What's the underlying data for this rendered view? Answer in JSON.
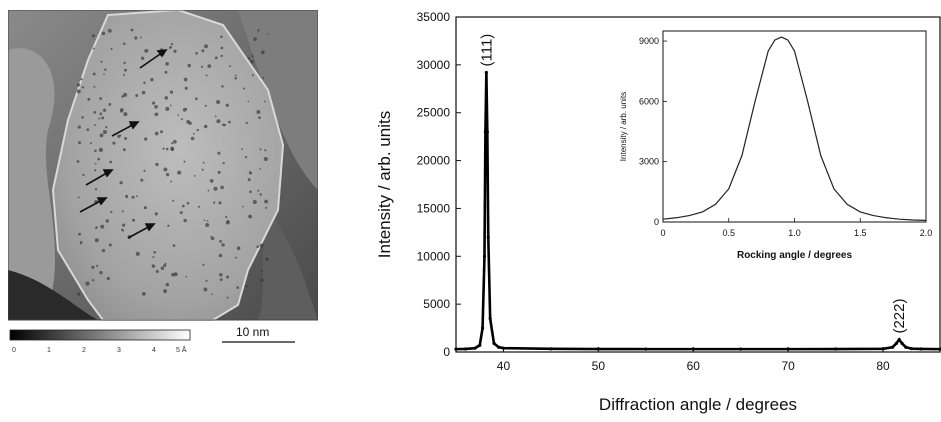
{
  "stm_image": {
    "colorbar_ticks": [
      "0",
      "1",
      "2",
      "3",
      "4",
      "5 Å"
    ],
    "scalebar_label": "10 nm"
  },
  "chart_data": [
    {
      "type": "line",
      "xlabel": "Diffraction angle / degrees",
      "ylabel": "Intensity / arb. units",
      "xlim": [
        35,
        86
      ],
      "ylim": [
        0,
        35000
      ],
      "xticks": [
        40,
        50,
        60,
        70,
        80
      ],
      "yticks": [
        0,
        5000,
        10000,
        15000,
        20000,
        25000,
        30000,
        35000
      ],
      "grid": false,
      "annotations": [
        {
          "text": "(111)",
          "x": 38.2,
          "y": 29200
        },
        {
          "text": "(222)",
          "x": 81.7,
          "y": 1300
        }
      ],
      "series": [
        {
          "x": [
            35,
            36,
            37,
            37.5,
            37.8,
            38.0,
            38.1,
            38.2,
            38.3,
            38.4,
            38.6,
            39.0,
            39.5,
            40,
            45,
            50,
            55,
            60,
            65,
            70,
            75,
            80,
            81.0,
            81.4,
            81.7,
            82.0,
            82.4,
            83,
            84,
            86
          ],
          "y": [
            300,
            320,
            400,
            700,
            2500,
            10000,
            23000,
            29200,
            23000,
            12000,
            3500,
            900,
            500,
            400,
            330,
            310,
            300,
            300,
            300,
            300,
            310,
            330,
            500,
            900,
            1300,
            900,
            500,
            350,
            320,
            300
          ]
        }
      ]
    },
    {
      "type": "line",
      "xlabel": "Rocking angle / degrees",
      "ylabel": "Intensity / arb. units",
      "xlim": [
        0,
        2.0
      ],
      "ylim": [
        0,
        9500
      ],
      "xticks": [
        "0",
        "0.5",
        "1.0",
        "1.5",
        "2.0"
      ],
      "yticks": [
        "0",
        "3000",
        "6000",
        "9000"
      ],
      "peak_x": 0.9,
      "peak_y": 9200,
      "series": [
        {
          "x": [
            0.0,
            0.1,
            0.2,
            0.3,
            0.4,
            0.5,
            0.6,
            0.7,
            0.8,
            0.85,
            0.9,
            0.95,
            1.0,
            1.1,
            1.2,
            1.3,
            1.4,
            1.5,
            1.6,
            1.7,
            1.8,
            1.9,
            2.0
          ],
          "y": [
            140,
            210,
            320,
            500,
            880,
            1650,
            3300,
            6000,
            8500,
            9050,
            9200,
            9050,
            8500,
            6000,
            3300,
            1650,
            880,
            500,
            320,
            210,
            140,
            100,
            80
          ]
        }
      ]
    }
  ]
}
